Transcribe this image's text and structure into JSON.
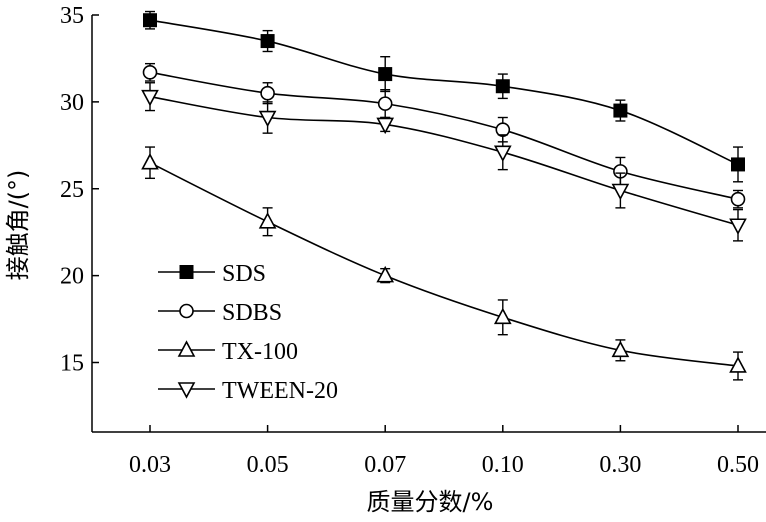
{
  "chart_data": {
    "type": "line",
    "title": "",
    "xlabel": "质量分数/%",
    "ylabel": "接触角/(°)",
    "categories": [
      "0.03",
      "0.05",
      "0.07",
      "0.10",
      "0.30",
      "0.50"
    ],
    "ylim": [
      11,
      35
    ],
    "yticks": [
      15,
      20,
      25,
      30,
      35
    ],
    "grid": false,
    "legend_position": "lower-left",
    "series": [
      {
        "name": "SDS",
        "marker": "filled-square",
        "values": [
          34.7,
          33.5,
          31.6,
          30.9,
          29.5,
          26.4
        ],
        "errors": [
          0.5,
          0.6,
          1.0,
          0.7,
          0.6,
          1.0
        ]
      },
      {
        "name": "SDBS",
        "marker": "open-circle",
        "values": [
          31.7,
          30.5,
          29.9,
          28.4,
          26.0,
          24.4
        ],
        "errors": [
          0.5,
          0.6,
          0.8,
          0.7,
          0.8,
          0.5
        ]
      },
      {
        "name": "TX-100",
        "marker": "open-triangle-up",
        "values": [
          26.5,
          23.1,
          20.0,
          17.6,
          15.7,
          14.8
        ],
        "errors": [
          0.9,
          0.8,
          0.4,
          1.0,
          0.6,
          0.8
        ]
      },
      {
        "name": "TWEEN-20",
        "marker": "open-triangle-down",
        "values": [
          30.3,
          29.1,
          28.7,
          27.1,
          24.9,
          22.9
        ],
        "errors": [
          0.8,
          0.9,
          0.4,
          1.0,
          1.0,
          0.9
        ]
      }
    ]
  }
}
